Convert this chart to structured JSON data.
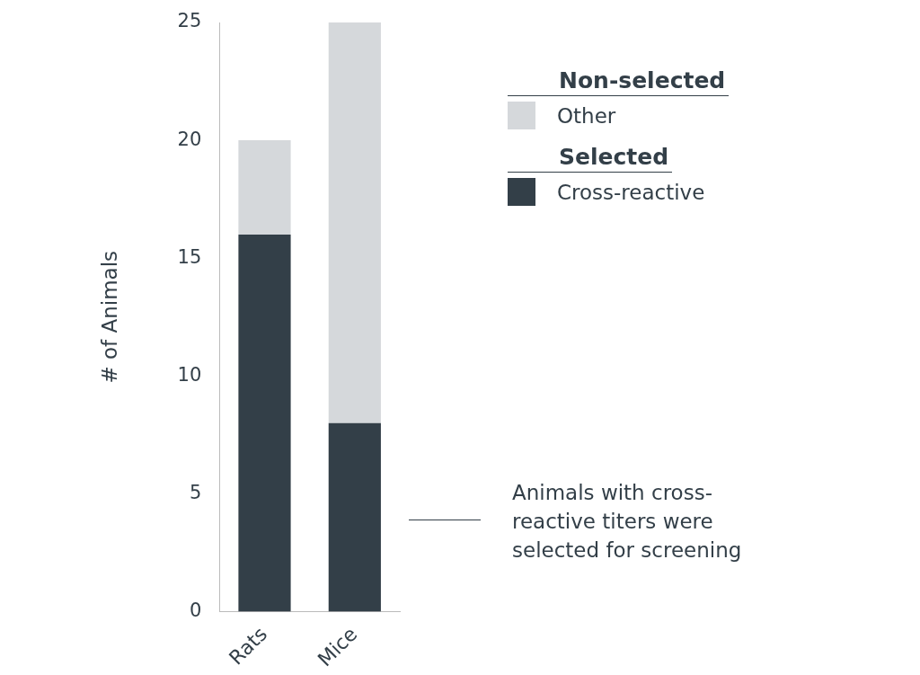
{
  "chart_data": {
    "type": "bar",
    "stacked": true,
    "ylabel": "# of Animals",
    "categories": [
      "Rats",
      "Mice"
    ],
    "series": [
      {
        "name": "Cross-reactive",
        "color": "#333f48",
        "values": [
          16,
          8
        ]
      },
      {
        "name": "Other",
        "color": "#d5d8db",
        "values": [
          4,
          17
        ]
      }
    ],
    "ylim": [
      0,
      25
    ],
    "yticks": [
      0,
      5,
      10,
      15,
      20,
      25
    ],
    "grid": false,
    "legend": "right",
    "annotations": [
      "Non-selected",
      "Selected",
      "Animals with cross-reactive titers were selected for screening"
    ]
  }
}
